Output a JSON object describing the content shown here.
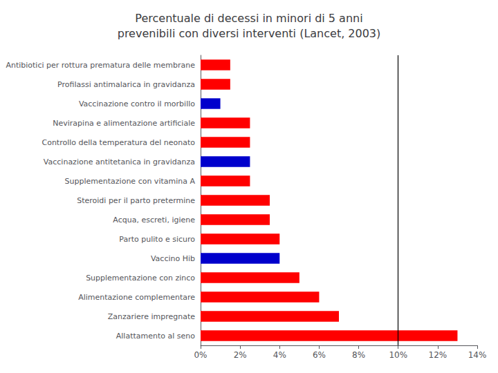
{
  "chart_data": {
    "type": "bar",
    "orientation": "horizontal",
    "title": "Percentuale di decessi in minori di 5 anni\nprevenibili con diversi interventi (Lancet, 2003)",
    "categories": [
      "Allattamento al seno",
      "Zanzariere impregnate",
      "Alimentazione complementare",
      "Supplementazione con zinco",
      "Vaccino Hib",
      "Parto pulito e sicuro",
      "Acqua, escreti, igiene",
      "Steroidi per il parto pretermine",
      "Supplementazione con vitamina A",
      "Vaccinazione antitetanica in gravidanza",
      "Controllo della temperatura del neonato",
      "Nevirapina e alimentazione artificiale",
      "Vaccinazione contro il morbillo",
      "Profilassi antimalarica in gravidanza",
      "Antibiotici per rottura prematura delle membrane"
    ],
    "values": [
      13.0,
      7.0,
      6.0,
      5.0,
      4.0,
      4.0,
      3.5,
      3.5,
      2.5,
      2.5,
      2.5,
      2.5,
      1.0,
      1.5,
      1.5
    ],
    "colors": [
      "#ff0000",
      "#ff0000",
      "#ff0000",
      "#ff0000",
      "#0000cc",
      "#ff0000",
      "#ff0000",
      "#ff0000",
      "#ff0000",
      "#0000cc",
      "#ff0000",
      "#ff0000",
      "#0000cc",
      "#ff0000",
      "#ff0000"
    ],
    "xlim": [
      0,
      14
    ],
    "xticks": [
      {
        "value": 0,
        "label": "0%"
      },
      {
        "value": 2,
        "label": "2%"
      },
      {
        "value": 4,
        "label": "4%"
      },
      {
        "value": 6,
        "label": "6%"
      },
      {
        "value": 8,
        "label": "8%"
      },
      {
        "value": 10,
        "label": "10%"
      },
      {
        "value": 12,
        "label": "12%"
      },
      {
        "value": 14,
        "label": "14%"
      }
    ],
    "vline": 10,
    "grid": false
  }
}
